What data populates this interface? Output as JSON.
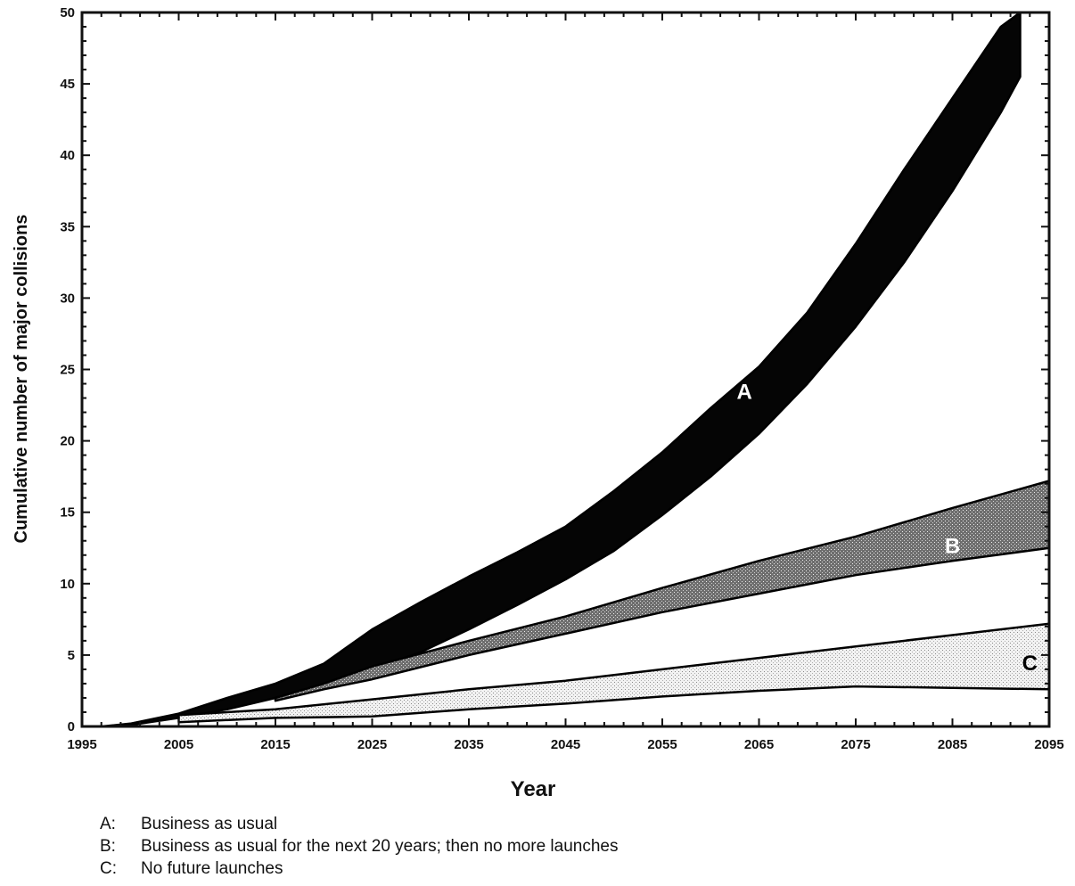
{
  "chart_data": {
    "type": "area",
    "title": "",
    "xlabel": "Year",
    "ylabel": "Cumulative number of major collisions",
    "xlim": [
      1995,
      2095
    ],
    "ylim": [
      0,
      50
    ],
    "xticks": [
      "1995",
      "2005",
      "2015",
      "2025",
      "2035",
      "2045",
      "2055",
      "2065",
      "2075",
      "2085",
      "2095"
    ],
    "yticks": [
      "0",
      "5",
      "10",
      "15",
      "20",
      "25",
      "30",
      "35",
      "40",
      "45",
      "50"
    ],
    "series": [
      {
        "name": "A",
        "legend": "Business as usual",
        "fill": "#000000",
        "x": [
          1997,
          2000,
          2005,
          2010,
          2015,
          2020,
          2025,
          2030,
          2035,
          2040,
          2045,
          2050,
          2055,
          2060,
          2065,
          2070,
          2075,
          2080,
          2085,
          2090,
          2092
        ],
        "upper": [
          0,
          0.2,
          0.9,
          2.0,
          3.0,
          4.4,
          6.8,
          8.7,
          10.5,
          12.2,
          14.0,
          16.5,
          19.2,
          22.3,
          25.2,
          29.0,
          33.8,
          39.0,
          44.0,
          49.0,
          50.0
        ],
        "lower": [
          0,
          0.1,
          0.6,
          1.2,
          2.0,
          2.8,
          4.0,
          5.2,
          6.8,
          8.5,
          10.3,
          12.3,
          14.8,
          17.5,
          20.5,
          24.0,
          28.0,
          32.5,
          37.5,
          43.0,
          45.5
        ]
      },
      {
        "name": "B",
        "legend": "Business as usual for the next 20 years; then no more launches",
        "fill": "#5a5a5a",
        "x": [
          2015,
          2020,
          2025,
          2035,
          2045,
          2055,
          2065,
          2075,
          2085,
          2095
        ],
        "upper": [
          2.0,
          3.0,
          4.2,
          6.0,
          7.7,
          9.7,
          11.6,
          13.3,
          15.3,
          17.2
        ],
        "lower": [
          1.8,
          2.6,
          3.3,
          5.0,
          6.5,
          8.0,
          9.3,
          10.6,
          11.6,
          12.5
        ]
      },
      {
        "name": "C",
        "legend": "No future launches",
        "fill": "#d0d0d0",
        "x": [
          2005,
          2015,
          2025,
          2035,
          2045,
          2055,
          2065,
          2075,
          2085,
          2095
        ],
        "upper": [
          0.8,
          1.2,
          1.9,
          2.6,
          3.2,
          4.0,
          4.8,
          5.6,
          6.4,
          7.2
        ],
        "lower": [
          0.3,
          0.6,
          0.7,
          1.2,
          1.6,
          2.1,
          2.5,
          2.8,
          2.7,
          2.6
        ]
      }
    ]
  },
  "legend_items": [
    {
      "key": "A:",
      "text": "Business as usual"
    },
    {
      "key": "B:",
      "text": "Business as usual for the next 20 years; then no more launches"
    },
    {
      "key": "C:",
      "text": "No future launches"
    }
  ]
}
